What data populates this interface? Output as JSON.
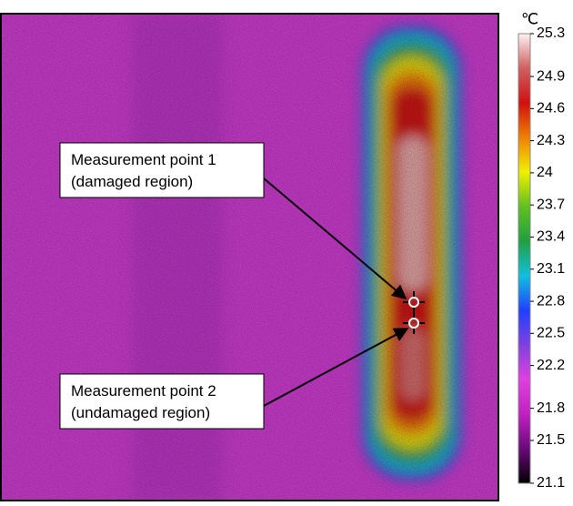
{
  "unit": "℃",
  "colorbar": {
    "range": [
      21.1,
      25.3
    ],
    "ticks": [
      25.3,
      24.9,
      24.6,
      24.3,
      24.0,
      23.7,
      23.4,
      23.1,
      22.8,
      22.5,
      22.2,
      21.8,
      21.5,
      21.1
    ],
    "colors": [
      "#000000",
      "#6a0a7a",
      "#c020c0",
      "#e040e0",
      "#8040e0",
      "#2040ff",
      "#10c0e0",
      "#20a040",
      "#60c020",
      "#f0f000",
      "#f08000",
      "#d01010",
      "#d06060",
      "#fff0f0"
    ]
  },
  "annotations": [
    {
      "lines": [
        "Measurement point 1",
        "(damaged region)"
      ]
    },
    {
      "lines": [
        "Measurement point 2",
        "(undamaged region)"
      ]
    }
  ]
}
